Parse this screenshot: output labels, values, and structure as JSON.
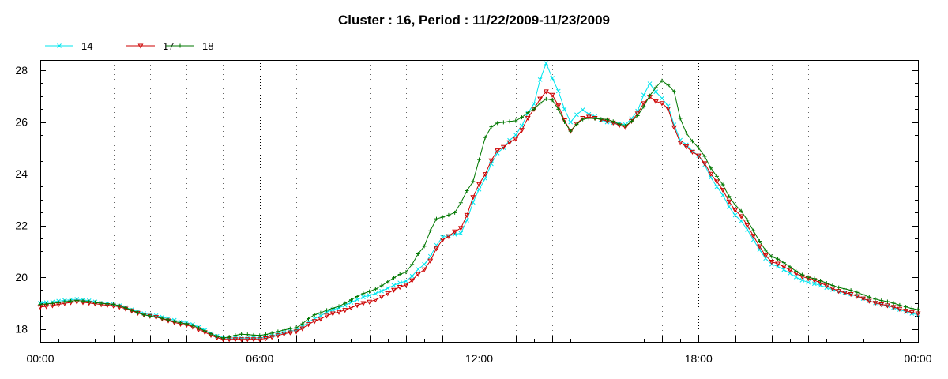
{
  "chart_data": {
    "type": "line",
    "title": "Cluster : 16, Period : 11/22/2009-11/23/2009",
    "xlabel": "",
    "ylabel": "",
    "x_unit": "hours",
    "xlim": [
      0,
      24
    ],
    "ylim": [
      17.5,
      28.4
    ],
    "x_ticks": [
      {
        "value": 0,
        "label": "00:00"
      },
      {
        "value": 6,
        "label": "06:00"
      },
      {
        "value": 12,
        "label": "12:00"
      },
      {
        "value": 18,
        "label": "18:00"
      },
      {
        "value": 24,
        "label": "00:00"
      }
    ],
    "y_ticks": [
      {
        "value": 18,
        "label": "18"
      },
      {
        "value": 20,
        "label": "20"
      },
      {
        "value": 22,
        "label": "22"
      },
      {
        "value": 24,
        "label": "24"
      },
      {
        "value": 26,
        "label": "26"
      },
      {
        "value": 28,
        "label": "28"
      }
    ],
    "grid": "vertical dotted lines at each hour",
    "legend_position": "top-left",
    "series": [
      {
        "name": "14",
        "color": "#00e5ee",
        "marker": "x",
        "points": [
          [
            0,
            19.0
          ],
          [
            1,
            19.15
          ],
          [
            2,
            18.95
          ],
          [
            3,
            18.55
          ],
          [
            4,
            18.25
          ],
          [
            5,
            17.65
          ],
          [
            6,
            17.65
          ],
          [
            7,
            17.95
          ],
          [
            7.5,
            18.4
          ],
          [
            8,
            18.75
          ],
          [
            9,
            19.3
          ],
          [
            10,
            19.85
          ],
          [
            10.5,
            20.5
          ],
          [
            11,
            21.55
          ],
          [
            11.5,
            21.7
          ],
          [
            12,
            23.4
          ],
          [
            12.5,
            24.8
          ],
          [
            13,
            25.5
          ],
          [
            13.5,
            26.7
          ],
          [
            13.8,
            28.35
          ],
          [
            14,
            27.7
          ],
          [
            14.5,
            26.0
          ],
          [
            14.8,
            26.5
          ],
          [
            15,
            26.3
          ],
          [
            15.5,
            26.0
          ],
          [
            16,
            25.9
          ],
          [
            16.4,
            26.5
          ],
          [
            16.6,
            27.6
          ],
          [
            16.8,
            27.2
          ],
          [
            17.1,
            26.8
          ],
          [
            17.5,
            25.3
          ],
          [
            18,
            24.7
          ],
          [
            18.5,
            23.5
          ],
          [
            19,
            22.4
          ],
          [
            20,
            20.5
          ],
          [
            21,
            19.8
          ],
          [
            22,
            19.4
          ],
          [
            23,
            18.95
          ],
          [
            24,
            18.55
          ]
        ]
      },
      {
        "name": "17",
        "color": "#cc0000",
        "marker": "triangle-down",
        "points": [
          [
            0,
            18.85
          ],
          [
            1,
            19.05
          ],
          [
            2,
            18.9
          ],
          [
            3,
            18.5
          ],
          [
            4,
            18.15
          ],
          [
            5,
            17.6
          ],
          [
            6,
            17.6
          ],
          [
            7,
            17.9
          ],
          [
            7.5,
            18.3
          ],
          [
            8,
            18.6
          ],
          [
            9,
            19.05
          ],
          [
            10,
            19.7
          ],
          [
            10.5,
            20.3
          ],
          [
            11,
            21.45
          ],
          [
            11.5,
            21.9
          ],
          [
            12,
            23.6
          ],
          [
            12.5,
            24.9
          ],
          [
            13,
            25.35
          ],
          [
            13.5,
            26.5
          ],
          [
            13.8,
            27.2
          ],
          [
            14,
            27.05
          ],
          [
            14.5,
            25.65
          ],
          [
            14.8,
            26.15
          ],
          [
            15,
            26.2
          ],
          [
            15.5,
            26.05
          ],
          [
            16,
            25.8
          ],
          [
            16.4,
            26.4
          ],
          [
            16.6,
            27.05
          ],
          [
            16.8,
            26.8
          ],
          [
            17.1,
            26.7
          ],
          [
            17.5,
            25.2
          ],
          [
            18,
            24.7
          ],
          [
            18.5,
            23.7
          ],
          [
            19,
            22.6
          ],
          [
            20,
            20.6
          ],
          [
            21,
            19.95
          ],
          [
            22,
            19.4
          ],
          [
            23,
            18.95
          ],
          [
            24,
            18.6
          ]
        ]
      },
      {
        "name": "18",
        "color": "#007700",
        "marker": "plus",
        "points": [
          [
            0,
            18.95
          ],
          [
            1,
            19.1
          ],
          [
            2,
            18.95
          ],
          [
            3,
            18.5
          ],
          [
            4,
            18.2
          ],
          [
            5,
            17.65
          ],
          [
            5.5,
            17.8
          ],
          [
            6,
            17.75
          ],
          [
            7,
            18.05
          ],
          [
            7.5,
            18.55
          ],
          [
            8,
            18.8
          ],
          [
            9,
            19.45
          ],
          [
            10,
            20.2
          ],
          [
            10.5,
            21.2
          ],
          [
            10.8,
            22.25
          ],
          [
            11.3,
            22.45
          ],
          [
            11.8,
            23.6
          ],
          [
            12.2,
            25.5
          ],
          [
            12.4,
            25.95
          ],
          [
            13,
            26.05
          ],
          [
            13.5,
            26.5
          ],
          [
            13.8,
            26.9
          ],
          [
            14,
            26.85
          ],
          [
            14.5,
            25.65
          ],
          [
            14.8,
            26.1
          ],
          [
            15,
            26.15
          ],
          [
            15.5,
            26.1
          ],
          [
            16,
            25.85
          ],
          [
            16.4,
            26.3
          ],
          [
            16.6,
            26.9
          ],
          [
            16.8,
            27.3
          ],
          [
            17,
            27.6
          ],
          [
            17.3,
            27.3
          ],
          [
            17.6,
            25.65
          ],
          [
            18,
            25.0
          ],
          [
            18.5,
            23.9
          ],
          [
            19,
            22.8
          ],
          [
            20,
            20.8
          ],
          [
            21,
            20.0
          ],
          [
            22,
            19.55
          ],
          [
            23,
            19.1
          ],
          [
            24,
            18.75
          ]
        ]
      }
    ]
  }
}
